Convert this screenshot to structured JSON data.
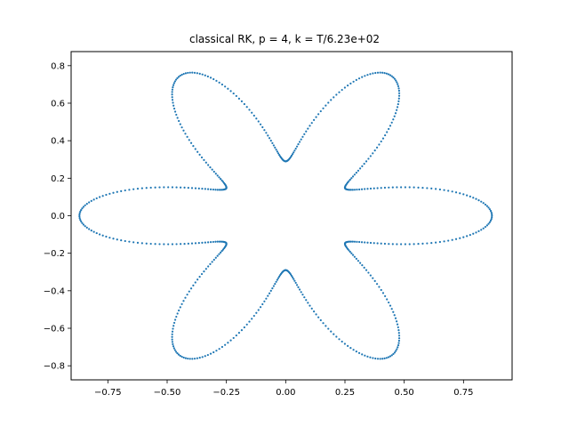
{
  "chart_data": {
    "type": "scatter",
    "title": "classical RK, p = 4, k = T/6.23e+02",
    "xlabel": "",
    "ylabel": "",
    "xlim": [
      -0.905,
      0.955
    ],
    "ylim": [
      -0.875,
      0.875
    ],
    "xticks": [
      -0.75,
      -0.5,
      -0.25,
      0.0,
      0.25,
      0.5,
      0.75
    ],
    "xtick_labels": [
      "−0.75",
      "−0.50",
      "−0.25",
      "0.00",
      "0.25",
      "0.50",
      "0.75"
    ],
    "yticks": [
      -0.8,
      -0.6,
      -0.4,
      -0.2,
      0.0,
      0.2,
      0.4,
      0.6,
      0.8
    ],
    "ytick_labels": [
      "−0.8",
      "−0.6",
      "−0.4",
      "−0.2",
      "0.0",
      "0.2",
      "0.4",
      "0.6",
      "0.8"
    ],
    "grid": false,
    "marker_color": "#1f77b4",
    "num_points": 623,
    "curve": "closed lemniscate-like orbit with six outer loops, approximated by r(t) = 0.58 + 0.29*cos(6t), x = r*cos(t), y = r*sin(t)"
  }
}
